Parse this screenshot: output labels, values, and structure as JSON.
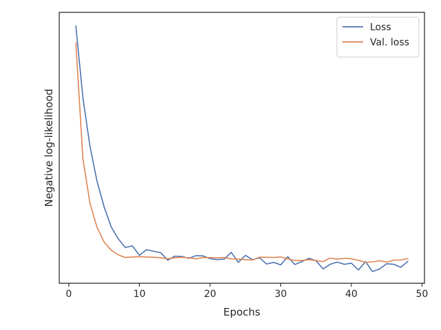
{
  "chart_data": {
    "type": "line",
    "title": "",
    "xlabel": "Epochs",
    "ylabel": "Negative log-likelihood",
    "xlim": [
      -1.35,
      50.35
    ],
    "ylim": [
      0,
      1.0
    ],
    "xticks": [
      0,
      10,
      20,
      30,
      40,
      50
    ],
    "yticks_visible": false,
    "grid": false,
    "legend_position": "top-right",
    "x": [
      1,
      2,
      3,
      4,
      5,
      6,
      7,
      8,
      9,
      10,
      11,
      12,
      13,
      14,
      15,
      16,
      17,
      18,
      19,
      20,
      21,
      22,
      23,
      24,
      25,
      26,
      27,
      28,
      29,
      30,
      31,
      32,
      33,
      34,
      35,
      36,
      37,
      38,
      39,
      40,
      41,
      42,
      43,
      44,
      45,
      46,
      47,
      48
    ],
    "series": [
      {
        "name": "Loss",
        "color": "#4c72b0",
        "values": [
          0.95,
          0.684,
          0.505,
          0.376,
          0.282,
          0.208,
          0.164,
          0.132,
          0.138,
          0.103,
          0.124,
          0.118,
          0.113,
          0.085,
          0.1,
          0.099,
          0.092,
          0.102,
          0.101,
          0.091,
          0.087,
          0.089,
          0.114,
          0.077,
          0.103,
          0.087,
          0.094,
          0.071,
          0.077,
          0.068,
          0.098,
          0.069,
          0.08,
          0.092,
          0.083,
          0.053,
          0.07,
          0.078,
          0.07,
          0.074,
          0.049,
          0.08,
          0.043,
          0.053,
          0.072,
          0.07,
          0.059,
          0.081
        ]
      },
      {
        "name": "Val. loss",
        "color": "#dd8452",
        "values": [
          0.888,
          0.459,
          0.295,
          0.206,
          0.152,
          0.122,
          0.105,
          0.095,
          0.097,
          0.098,
          0.097,
          0.096,
          0.094,
          0.09,
          0.094,
          0.096,
          0.094,
          0.09,
          0.095,
          0.095,
          0.094,
          0.095,
          0.09,
          0.089,
          0.087,
          0.086,
          0.096,
          0.096,
          0.095,
          0.097,
          0.09,
          0.084,
          0.084,
          0.087,
          0.084,
          0.08,
          0.093,
          0.089,
          0.092,
          0.09,
          0.085,
          0.077,
          0.079,
          0.083,
          0.078,
          0.085,
          0.086,
          0.091
        ]
      }
    ]
  }
}
